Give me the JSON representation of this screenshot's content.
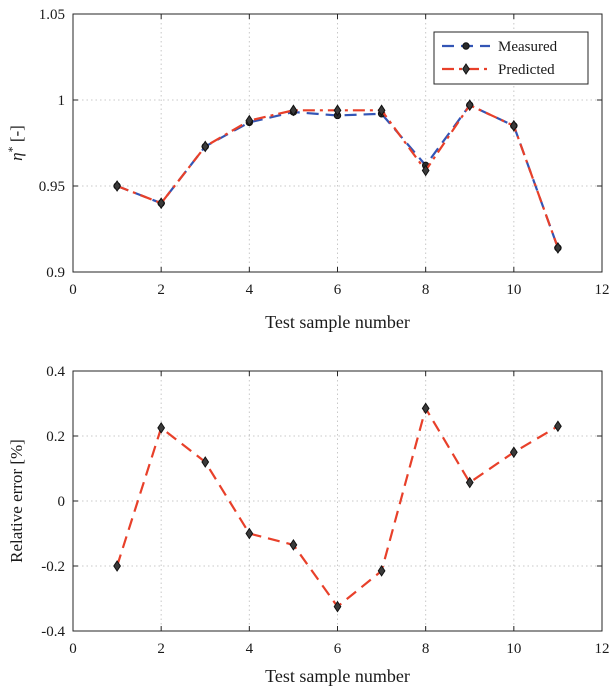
{
  "chart_data": [
    {
      "type": "line",
      "xlabel": "Test sample number",
      "ylabel_symbol": "η",
      "ylabel_sup": "*",
      "ylabel_unit": " [-]",
      "xlim": [
        0,
        12
      ],
      "ylim": [
        0.9,
        1.05
      ],
      "xticks": [
        0,
        2,
        4,
        6,
        8,
        10,
        12
      ],
      "xtick_labels": [
        "0",
        "2",
        "4",
        "6",
        "8",
        "10",
        "12"
      ],
      "yticks": [
        0.9,
        0.95,
        1.0,
        1.05
      ],
      "ytick_labels": [
        "0.9",
        "0.95",
        "1",
        "1.05"
      ],
      "grid": true,
      "legend_position": "top-right",
      "x": [
        1,
        2,
        3,
        4,
        5,
        6,
        7,
        8,
        9,
        10,
        11
      ],
      "series": [
        {
          "name": "Measured",
          "color": "#3355b5",
          "marker": "circle",
          "line": "dashed",
          "values": [
            0.95,
            0.94,
            0.973,
            0.987,
            0.993,
            0.991,
            0.992,
            0.962,
            0.997,
            0.985,
            0.914
          ]
        },
        {
          "name": "Predicted",
          "color": "#e8402a",
          "marker": "diamond",
          "line": "dash-dot",
          "values": [
            0.95,
            0.94,
            0.973,
            0.988,
            0.994,
            0.994,
            0.994,
            0.959,
            0.997,
            0.985,
            0.914
          ]
        }
      ]
    },
    {
      "type": "line",
      "xlabel": "Test sample number",
      "ylabel": "Relative error [%]",
      "xlim": [
        0,
        12
      ],
      "ylim": [
        -0.4,
        0.4
      ],
      "xticks": [
        0,
        2,
        4,
        6,
        8,
        10,
        12
      ],
      "xtick_labels": [
        "0",
        "2",
        "4",
        "6",
        "8",
        "10",
        "12"
      ],
      "yticks": [
        -0.4,
        -0.2,
        0,
        0.2,
        0.4
      ],
      "ytick_labels": [
        "-0.4",
        "-0.2",
        "0",
        "0.2",
        "0.4"
      ],
      "grid": true,
      "x": [
        1,
        2,
        3,
        4,
        5,
        6,
        7,
        8,
        9,
        10,
        11
      ],
      "series": [
        {
          "color": "#e8402a",
          "marker": "diamond",
          "line": "dashed",
          "values": [
            -0.2,
            0.225,
            0.12,
            -0.1,
            -0.135,
            -0.325,
            -0.215,
            0.285,
            0.057,
            0.15,
            0.23
          ]
        }
      ]
    }
  ]
}
